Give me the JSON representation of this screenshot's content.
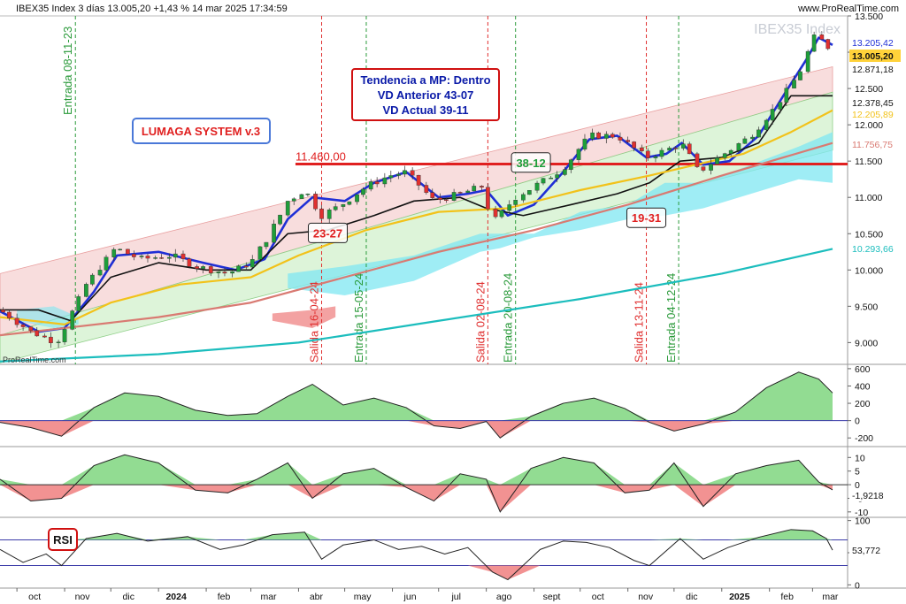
{
  "header": {
    "title": "IBEX35 Index 3 días 13.005,20 +1,43 % 14 mar 2025 17:34:59",
    "brand": "www.ProRealTime.com",
    "watermark": "IBEX35 Index",
    "source_note": "ProRealTime.com"
  },
  "colors": {
    "up_candle": "#1e9e3a",
    "down_candle": "#e03030",
    "fast_ma": "#1f2fd6",
    "black_ma": "#111111",
    "yellow_ma": "#f2c21a",
    "salmon_ma": "#d97a72",
    "cyan_ma": "#1bbdbd",
    "support_line": "#e02020",
    "cloud": "#7fe7f2",
    "channel_pink": "#f6d2d2",
    "channel_green": "#d4f1d0"
  },
  "chart_data": [
    {
      "type": "line",
      "panel": "price",
      "ylim": [
        8700,
        13500
      ],
      "y_ticks": [
        9000,
        9500,
        10000,
        10500,
        11000,
        11500,
        12000,
        12500,
        13000,
        13500
      ],
      "y_tick_labels": [
        "9.000",
        "9.500",
        "10.000",
        "10.500",
        "11.000",
        "11.500",
        "12.000",
        "12.500",
        "13.000",
        "13.500"
      ],
      "x_labels": [
        {
          "label": "oct",
          "date": "2023-10-01"
        },
        {
          "label": "nov",
          "date": "2023-11-01"
        },
        {
          "label": "dic",
          "date": "2023-12-01"
        },
        {
          "label": "2024",
          "date": "2024-01-01"
        },
        {
          "label": "feb",
          "date": "2024-02-01"
        },
        {
          "label": "mar",
          "date": "2024-03-01"
        },
        {
          "label": "abr",
          "date": "2024-04-01"
        },
        {
          "label": "may",
          "date": "2024-05-01"
        },
        {
          "label": "jun",
          "date": "2024-06-01"
        },
        {
          "label": "jul",
          "date": "2024-07-01"
        },
        {
          "label": "ago",
          "date": "2024-08-01"
        },
        {
          "label": "sept",
          "date": "2024-09-01"
        },
        {
          "label": "oct",
          "date": "2024-10-01"
        },
        {
          "label": "nov",
          "date": "2024-11-01"
        },
        {
          "label": "dic",
          "date": "2024-12-01"
        },
        {
          "label": "2025",
          "date": "2025-01-01"
        },
        {
          "label": "feb",
          "date": "2025-02-01"
        },
        {
          "label": "mar",
          "date": "2025-03-01"
        }
      ],
      "price_close_path": {
        "x": [
          "2023-09-20",
          "2023-10-10",
          "2023-10-27",
          "2023-11-15",
          "2023-12-04",
          "2023-12-20",
          "2024-01-10",
          "2024-01-25",
          "2024-02-15",
          "2024-03-01",
          "2024-03-12",
          "2024-03-25",
          "2024-04-05",
          "2024-04-16",
          "2024-04-29",
          "2024-05-15",
          "2024-05-30",
          "2024-06-10",
          "2024-06-28",
          "2024-07-15",
          "2024-07-29",
          "2024-08-05",
          "2024-08-20",
          "2024-09-05",
          "2024-09-20",
          "2024-10-07",
          "2024-10-25",
          "2024-11-13",
          "2024-11-26",
          "2024-12-06",
          "2024-12-17",
          "2024-12-30",
          "2025-01-20",
          "2025-02-05",
          "2025-02-20",
          "2025-03-03",
          "2025-03-14"
        ],
        "y": [
          9450,
          9150,
          9000,
          9800,
          10300,
          10150,
          10200,
          10050,
          9950,
          10100,
          10450,
          10950,
          11100,
          10750,
          10900,
          11150,
          11300,
          11350,
          10950,
          11050,
          11150,
          10650,
          11000,
          11200,
          11400,
          11850,
          11850,
          11550,
          11650,
          11750,
          11350,
          11550,
          11850,
          12250,
          12700,
          13250,
          13005
        ]
      },
      "series": [
        {
          "name": "",
          "color_key": "fast_ma",
          "x": [
            "2023-09-20",
            "2023-10-15",
            "2023-11-01",
            "2023-11-20",
            "2023-12-05",
            "2024-01-01",
            "2024-01-30",
            "2024-02-20",
            "2024-03-10",
            "2024-03-25",
            "2024-04-10",
            "2024-05-01",
            "2024-05-20",
            "2024-06-10",
            "2024-07-01",
            "2024-07-20",
            "2024-08-01",
            "2024-08-15",
            "2024-09-01",
            "2024-09-20",
            "2024-10-07",
            "2024-10-25",
            "2024-11-13",
            "2024-11-26",
            "2024-12-06",
            "2024-12-20",
            "2025-01-06",
            "2025-01-25",
            "2025-02-10",
            "2025-02-25",
            "2025-03-05",
            "2025-03-14"
          ],
          "y": [
            9430,
            9150,
            9200,
            9700,
            10200,
            10250,
            10100,
            10000,
            10150,
            10700,
            11000,
            10950,
            11200,
            11350,
            11000,
            11050,
            11100,
            10750,
            10900,
            11350,
            11800,
            11850,
            11550,
            11600,
            11750,
            11450,
            11500,
            11850,
            12400,
            12900,
            13200,
            13100
          ]
        },
        {
          "name": "",
          "color_key": "black_ma",
          "x": [
            "2023-09-20",
            "2023-10-15",
            "2023-11-05",
            "2023-12-01",
            "2024-01-01",
            "2024-02-01",
            "2024-03-01",
            "2024-03-25",
            "2024-04-20",
            "2024-05-20",
            "2024-06-15",
            "2024-07-15",
            "2024-08-01",
            "2024-08-25",
            "2024-09-25",
            "2024-10-25",
            "2024-11-15",
            "2024-12-05",
            "2025-01-01",
            "2025-01-25",
            "2025-02-15",
            "2025-03-14"
          ],
          "y": [
            9450,
            9450,
            9300,
            9900,
            10100,
            10000,
            10000,
            10500,
            10550,
            10750,
            10950,
            11000,
            10850,
            10750,
            10900,
            11050,
            11200,
            11500,
            11550,
            11750,
            12400,
            12400
          ]
        },
        {
          "name": "",
          "color_key": "yellow_ma",
          "x": [
            "2023-09-20",
            "2023-11-01",
            "2023-12-01",
            "2024-01-15",
            "2024-03-01",
            "2024-04-01",
            "2024-05-15",
            "2024-07-01",
            "2024-08-15",
            "2024-10-01",
            "2024-11-15",
            "2024-12-15",
            "2025-01-15",
            "2025-02-15",
            "2025-03-14"
          ],
          "y": [
            9350,
            9250,
            9550,
            9800,
            9900,
            10200,
            10550,
            10800,
            10850,
            11100,
            11300,
            11450,
            11600,
            11900,
            12200
          ]
        },
        {
          "name": "",
          "color_key": "salmon_ma",
          "x": [
            "2023-09-20",
            "2023-11-01",
            "2024-01-01",
            "2024-03-01",
            "2024-05-01",
            "2024-07-01",
            "2024-09-01",
            "2024-11-01",
            "2025-01-01",
            "2025-03-14"
          ],
          "y": [
            9100,
            9200,
            9350,
            9550,
            9900,
            10250,
            10550,
            10900,
            11300,
            11750
          ]
        },
        {
          "name": "",
          "color_key": "cyan_ma",
          "x": [
            "2023-09-20",
            "2024-01-01",
            "2024-04-01",
            "2024-07-01",
            "2024-10-01",
            "2025-01-01",
            "2025-03-14"
          ],
          "y": [
            8740,
            8840,
            9000,
            9300,
            9600,
            9950,
            10290
          ]
        }
      ],
      "support_level": {
        "value": 11460,
        "label": "11.460,00"
      },
      "price_tags": [
        {
          "label": "13.205,42",
          "value": 13205,
          "color_key": "fast_ma",
          "fill": "#ffffff"
        },
        {
          "label": "13.005,20",
          "value": 13005,
          "color_key": "black_ma",
          "fill": "#ffd23a"
        },
        {
          "label": "12.871,18",
          "value": 12871,
          "color_key": "black_ma",
          "fill": "#ffffff"
        },
        {
          "label": "12.378,45",
          "value": 12378,
          "color_key": "black_ma",
          "fill": "#ffffff"
        },
        {
          "label": "12.205,89",
          "value": 12206,
          "color_key": "yellow_ma",
          "fill": "#ffffff"
        },
        {
          "label": "11.756,75",
          "value": 11757,
          "color_key": "salmon_ma",
          "fill": "#ffffff"
        },
        {
          "label": "10.293,66",
          "value": 10294,
          "color_key": "cyan_ma",
          "fill": "#ffffff"
        }
      ],
      "signal_lines": [
        {
          "label": "Entrada 08-11-23",
          "date": "2023-11-08",
          "kind": "entrada"
        },
        {
          "label": "Salida 16-04-24",
          "date": "2024-04-16",
          "kind": "salida"
        },
        {
          "label": "Entrada 15-05-24",
          "date": "2024-05-15",
          "kind": "entrada"
        },
        {
          "label": "Salida 02-08-24",
          "date": "2024-08-02",
          "kind": "salida"
        },
        {
          "label": "Entrada 20-08-24",
          "date": "2024-08-20",
          "kind": "entrada"
        },
        {
          "label": "Salida 13-11-24",
          "date": "2024-11-13",
          "kind": "salida"
        },
        {
          "label": "Entrada 04-12-24",
          "date": "2024-12-04",
          "kind": "entrada"
        }
      ],
      "callouts": [
        {
          "label": "23-27",
          "date": "2024-04-20",
          "value": 10510,
          "color": "#e02020"
        },
        {
          "label": "38-12",
          "date": "2024-08-30",
          "value": 11480,
          "color": "#1e9e3a"
        },
        {
          "label": "19-31",
          "date": "2024-11-13",
          "value": 10720,
          "color": "#e02020"
        }
      ],
      "trend_box": {
        "lines": [
          "Tendencia a MP: Dentro",
          "VD Anterior 43-07",
          "VD Actual 39-11"
        ]
      },
      "system_box": {
        "label": "LUMAGA SYSTEM v.3"
      }
    },
    {
      "type": "area",
      "panel": "oscillator-1",
      "ylim": [
        -300,
        650
      ],
      "y_ticks": [
        600,
        400,
        200,
        0,
        -200
      ],
      "y_tick_labels": [
        "600",
        "400",
        "200",
        "0",
        "-200"
      ],
      "x": [
        "2023-09-20",
        "2023-10-10",
        "2023-10-30",
        "2023-11-20",
        "2023-12-10",
        "2024-01-01",
        "2024-01-25",
        "2024-02-15",
        "2024-03-05",
        "2024-03-25",
        "2024-04-10",
        "2024-04-30",
        "2024-05-20",
        "2024-06-10",
        "2024-06-28",
        "2024-07-15",
        "2024-08-01",
        "2024-08-10",
        "2024-08-30",
        "2024-09-20",
        "2024-10-10",
        "2024-10-30",
        "2024-11-15",
        "2024-12-01",
        "2024-12-20",
        "2025-01-10",
        "2025-01-30",
        "2025-02-20",
        "2025-03-05",
        "2025-03-14"
      ],
      "values": [
        -20,
        -80,
        -180,
        150,
        320,
        280,
        120,
        60,
        80,
        280,
        420,
        180,
        260,
        150,
        -60,
        -90,
        -10,
        -200,
        50,
        200,
        260,
        140,
        -20,
        -120,
        -40,
        100,
        380,
        560,
        480,
        320
      ]
    },
    {
      "type": "area",
      "panel": "oscillator-2",
      "ylim": [
        -12,
        14
      ],
      "y_ticks": [
        10,
        5,
        0,
        -5,
        -10
      ],
      "y_tick_labels": [
        "10",
        "5",
        "0",
        "-5",
        "-10"
      ],
      "last_value_label": "-1,9218",
      "x": [
        "2023-09-20",
        "2023-10-10",
        "2023-10-30",
        "2023-11-20",
        "2023-12-10",
        "2024-01-01",
        "2024-01-25",
        "2024-02-15",
        "2024-03-05",
        "2024-03-25",
        "2024-04-10",
        "2024-04-30",
        "2024-05-20",
        "2024-06-10",
        "2024-06-28",
        "2024-07-15",
        "2024-08-01",
        "2024-08-10",
        "2024-08-30",
        "2024-09-20",
        "2024-10-10",
        "2024-10-30",
        "2024-11-15",
        "2024-12-01",
        "2024-12-20",
        "2025-01-10",
        "2025-01-30",
        "2025-02-20",
        "2025-03-05",
        "2025-03-14"
      ],
      "values": [
        2,
        -6,
        -5,
        7,
        11,
        8,
        -2,
        -3,
        2,
        8,
        -5,
        4,
        6,
        -1,
        -6,
        4,
        2,
        -10,
        6,
        10,
        8,
        -3,
        -2,
        8,
        -8,
        4,
        7,
        9,
        1,
        -1.9
      ]
    },
    {
      "type": "line",
      "panel": "rsi",
      "title": "RSI",
      "ylim": [
        -5,
        105
      ],
      "y_ticks": [
        100,
        50,
        0
      ],
      "y_tick_labels": [
        "100",
        "50",
        "0"
      ],
      "levels": [
        70,
        30
      ],
      "last_value_label": "53,772",
      "x": [
        "2023-09-20",
        "2023-10-05",
        "2023-10-20",
        "2023-10-30",
        "2023-11-15",
        "2023-12-05",
        "2023-12-25",
        "2024-01-20",
        "2024-02-10",
        "2024-02-25",
        "2024-03-15",
        "2024-04-05",
        "2024-04-16",
        "2024-04-30",
        "2024-05-20",
        "2024-06-05",
        "2024-06-20",
        "2024-07-05",
        "2024-07-20",
        "2024-08-05",
        "2024-08-15",
        "2024-09-05",
        "2024-09-20",
        "2024-10-05",
        "2024-10-20",
        "2024-11-05",
        "2024-11-15",
        "2024-12-05",
        "2024-12-20",
        "2025-01-05",
        "2025-01-25",
        "2025-02-15",
        "2025-03-01",
        "2025-03-10",
        "2025-03-14"
      ],
      "values": [
        55,
        35,
        48,
        30,
        72,
        80,
        68,
        75,
        55,
        62,
        78,
        82,
        40,
        62,
        70,
        55,
        60,
        48,
        58,
        20,
        8,
        55,
        68,
        66,
        58,
        38,
        30,
        72,
        40,
        58,
        74,
        86,
        84,
        72,
        54
      ]
    }
  ]
}
